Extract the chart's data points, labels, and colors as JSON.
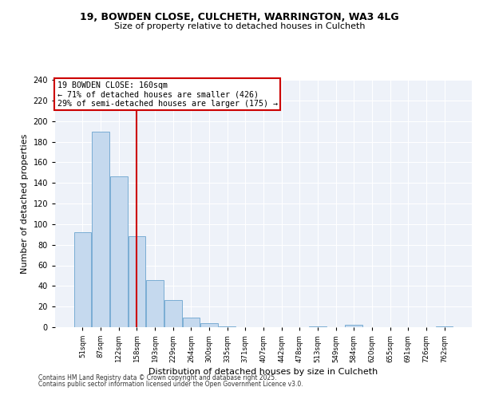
{
  "title1": "19, BOWDEN CLOSE, CULCHETH, WARRINGTON, WA3 4LG",
  "title2": "Size of property relative to detached houses in Culcheth",
  "categories": [
    "51sqm",
    "87sqm",
    "122sqm",
    "158sqm",
    "193sqm",
    "229sqm",
    "264sqm",
    "300sqm",
    "335sqm",
    "371sqm",
    "407sqm",
    "442sqm",
    "478sqm",
    "513sqm",
    "549sqm",
    "584sqm",
    "620sqm",
    "655sqm",
    "691sqm",
    "726sqm",
    "762sqm"
  ],
  "values": [
    92,
    190,
    146,
    88,
    46,
    26,
    9,
    4,
    1,
    0,
    0,
    0,
    0,
    1,
    0,
    2,
    0,
    0,
    0,
    0,
    1
  ],
  "bar_color": "#c5d9ee",
  "bar_edgecolor": "#7aadd4",
  "vline_x_index": 3,
  "vline_color": "#cc0000",
  "annotation_text": "19 BOWDEN CLOSE: 160sqm\n← 71% of detached houses are smaller (426)\n29% of semi-detached houses are larger (175) →",
  "annotation_box_edgecolor": "#cc0000",
  "xlabel": "Distribution of detached houses by size in Culcheth",
  "ylabel": "Number of detached properties",
  "ylim": [
    0,
    240
  ],
  "yticks": [
    0,
    20,
    40,
    60,
    80,
    100,
    120,
    140,
    160,
    180,
    200,
    220,
    240
  ],
  "footer1": "Contains HM Land Registry data © Crown copyright and database right 2025.",
  "footer2": "Contains public sector information licensed under the Open Government Licence v3.0.",
  "bg_color": "#eef2f9",
  "grid_color": "#ffffff",
  "fig_bg": "#ffffff"
}
